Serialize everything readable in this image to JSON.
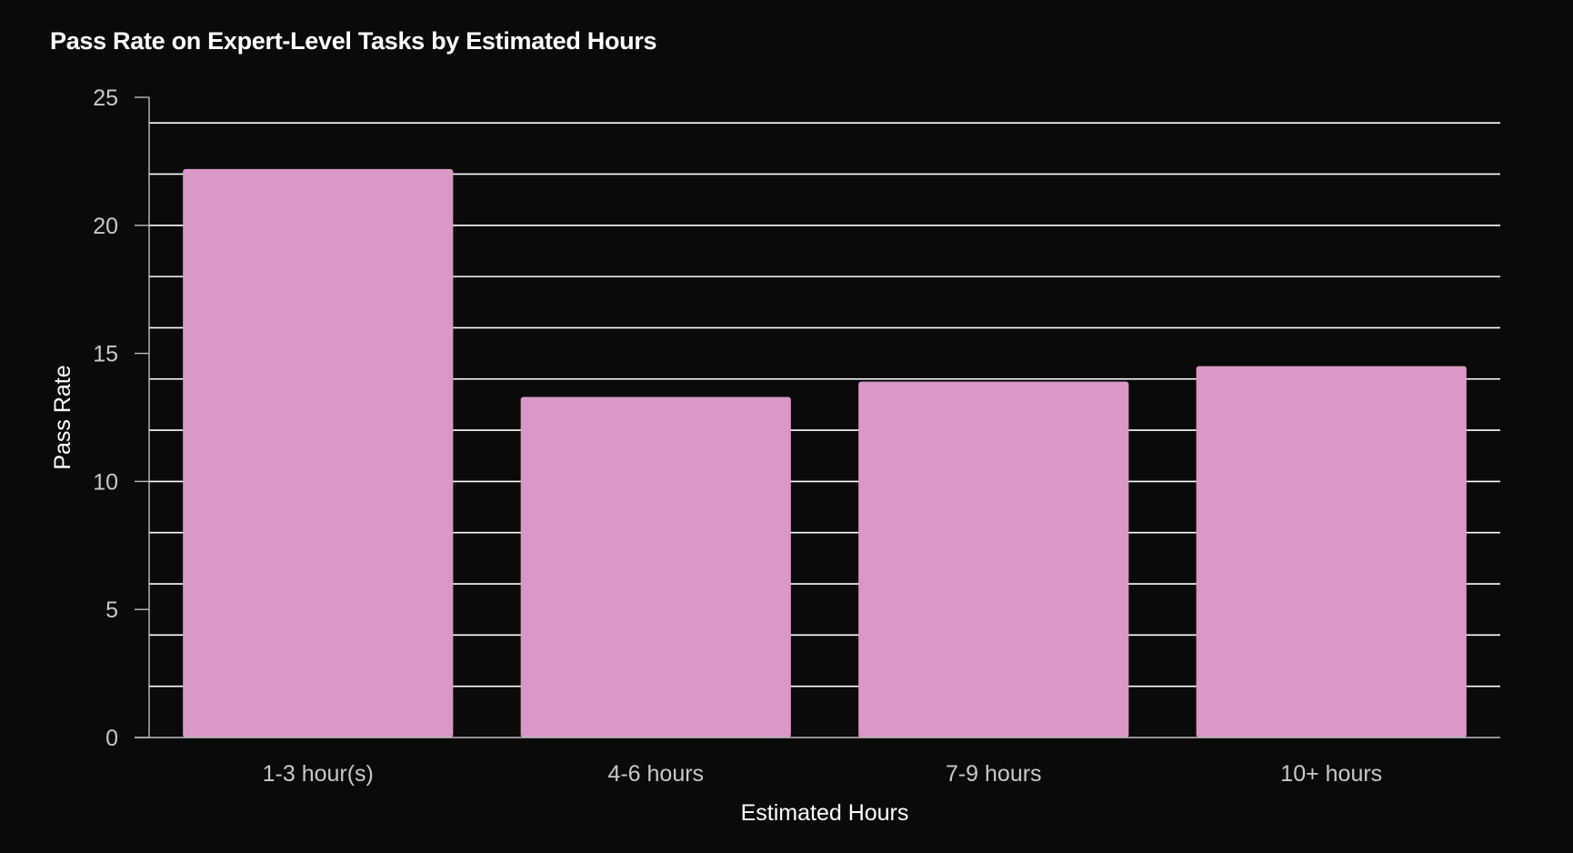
{
  "chart_data": {
    "type": "bar",
    "title": "Pass Rate on Expert-Level Tasks by Estimated Hours",
    "xlabel": "Estimated Hours",
    "ylabel": "Pass Rate",
    "categories": [
      "1-3 hour(s)",
      "4-6 hours",
      "7-9 hours",
      "10+ hours"
    ],
    "values": [
      22.2,
      13.3,
      13.9,
      14.5
    ],
    "ylim": [
      0,
      25
    ],
    "yticks": [
      0,
      5,
      10,
      15,
      20,
      25
    ],
    "grid_values": [
      2,
      4,
      6,
      8,
      10,
      12,
      14,
      16,
      18,
      20,
      22,
      24
    ],
    "grid": true,
    "bar_color": "#d998c5",
    "background_color": "#0a0a0a"
  }
}
